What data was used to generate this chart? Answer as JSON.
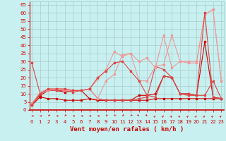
{
  "bg_color": "#c8f0f0",
  "grid_color": "#a8cccc",
  "line_color_dark": "#cc0000",
  "xlabel": "Vent moyen/en rafales ( km/h )",
  "xlabel_color": "#cc0000",
  "xlabel_fontsize": 6.5,
  "yticks": [
    0,
    5,
    10,
    15,
    20,
    25,
    30,
    35,
    40,
    45,
    50,
    55,
    60,
    65
  ],
  "xticks": [
    0,
    1,
    2,
    3,
    4,
    5,
    6,
    7,
    8,
    9,
    10,
    11,
    12,
    13,
    14,
    15,
    16,
    17,
    18,
    19,
    20,
    21,
    22,
    23
  ],
  "xlim": [
    -0.3,
    23.3
  ],
  "ylim": [
    0,
    67
  ],
  "series": [
    {
      "x": [
        0,
        1,
        2,
        3,
        4,
        5,
        6,
        7,
        8,
        9,
        10,
        11,
        12,
        13,
        14,
        15,
        16,
        17,
        18,
        19,
        20,
        21,
        22,
        23
      ],
      "y": [
        3,
        8,
        7,
        7,
        6,
        6,
        6,
        7,
        6,
        6,
        6,
        6,
        6,
        6,
        6,
        7,
        7,
        7,
        7,
        7,
        7,
        7,
        7,
        7
      ],
      "color": "#cc0000",
      "lw": 0.8,
      "marker": "s",
      "ms": 1.5
    },
    {
      "x": [
        0,
        1,
        2,
        3,
        4,
        5,
        6,
        7,
        8,
        9,
        10,
        11,
        12,
        13,
        14,
        15,
        16,
        17,
        18,
        19,
        20,
        21,
        22,
        23
      ],
      "y": [
        4,
        9,
        12,
        12,
        11,
        12,
        12,
        7,
        6,
        6,
        6,
        6,
        6,
        9,
        9,
        10,
        21,
        20,
        10,
        10,
        9,
        42,
        8,
        7
      ],
      "color": "#cc0000",
      "lw": 0.8,
      "marker": "s",
      "ms": 1.5
    },
    {
      "x": [
        0,
        1,
        2,
        3,
        4,
        5,
        6,
        7,
        8,
        9,
        10,
        11,
        12,
        13,
        14,
        15,
        16,
        17,
        18,
        19,
        20,
        21,
        22,
        23
      ],
      "y": [
        29,
        10,
        12,
        12,
        12,
        11,
        12,
        13,
        7,
        6,
        6,
        6,
        6,
        7,
        8,
        27,
        25,
        20,
        10,
        10,
        9,
        9,
        18,
        7
      ],
      "color": "#dd4444",
      "lw": 0.8,
      "marker": "s",
      "ms": 1.5
    },
    {
      "x": [
        0,
        1,
        2,
        3,
        4,
        5,
        6,
        7,
        8,
        9,
        10,
        11,
        12,
        13,
        14,
        15,
        16,
        17,
        18,
        19,
        20,
        21,
        22,
        23
      ],
      "y": [
        4,
        10,
        12,
        13,
        12,
        12,
        12,
        13,
        7,
        18,
        22,
        34,
        35,
        18,
        18,
        27,
        28,
        46,
        30,
        30,
        30,
        59,
        62,
        18
      ],
      "color": "#ee9999",
      "lw": 0.8,
      "marker": "s",
      "ms": 1.5
    },
    {
      "x": [
        0,
        1,
        2,
        3,
        4,
        5,
        6,
        7,
        8,
        9,
        10,
        11,
        12,
        13,
        14,
        15,
        16,
        17,
        18,
        19,
        20,
        21,
        22,
        23
      ],
      "y": [
        4,
        11,
        13,
        13,
        13,
        12,
        12,
        13,
        19,
        25,
        36,
        33,
        35,
        30,
        32,
        26,
        46,
        26,
        30,
        29,
        29,
        59,
        62,
        18
      ],
      "color": "#ee9999",
      "lw": 0.8,
      "marker": "s",
      "ms": 1.5
    },
    {
      "x": [
        0,
        1,
        2,
        3,
        4,
        5,
        6,
        7,
        8,
        9,
        10,
        11,
        12,
        13,
        14,
        15,
        16,
        17,
        18,
        19,
        20,
        21,
        22,
        23
      ],
      "y": [
        3,
        10,
        13,
        13,
        13,
        12,
        12,
        13,
        20,
        24,
        29,
        30,
        24,
        18,
        9,
        8,
        21,
        20,
        10,
        9,
        9,
        60,
        8,
        7
      ],
      "color": "#dd4444",
      "lw": 0.8,
      "marker": "s",
      "ms": 1.5
    }
  ],
  "arrow_angles": [
    180,
    180,
    225,
    180,
    225,
    180,
    180,
    180,
    180,
    225,
    225,
    225,
    225,
    315,
    315,
    45,
    45,
    45,
    45,
    45,
    45,
    45,
    45,
    45
  ],
  "tick_fontsize": 5.0,
  "tick_color": "#cc0000"
}
